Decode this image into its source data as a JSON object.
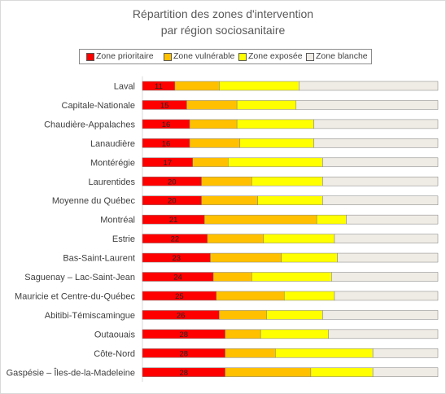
{
  "chart_data": {
    "type": "bar",
    "orientation": "horizontal",
    "stacked": "percent",
    "title_line1": "Répartition des zones d'intervention",
    "title_line2": "par région sociosanitaire",
    "legend_position": "top",
    "grid": false,
    "xlim": [
      0,
      100
    ],
    "categories": [
      "Laval",
      "Capitale-Nationale",
      "Chaudière-Appalaches",
      "Lanaudière",
      "Montérégie",
      "Laurentides",
      "Moyenne du Québec",
      "Montréal",
      "Estrie",
      "Bas-Saint-Laurent",
      "Saguenay – Lac-Saint-Jean",
      "Mauricie et Centre-du-Québec",
      "Abitibi-Témiscamingue",
      "Outaouais",
      "Côte-Nord",
      "Gaspésie – Îles-de-la-Madeleine"
    ],
    "series": [
      {
        "name": "Zone prioritaire",
        "color": "#ff0000",
        "values": [
          11,
          15,
          16,
          16,
          17,
          20,
          20,
          21,
          22,
          23,
          24,
          25,
          26,
          28,
          28,
          28
        ],
        "labels": [
          "11",
          "15",
          "16",
          "16",
          "17",
          "20",
          "20",
          "21",
          "22",
          "23",
          "24",
          "25",
          "26",
          "28",
          "28",
          "28"
        ]
      },
      {
        "name": "Zone vulnérable",
        "color": "#ffc000",
        "values": [
          15,
          17,
          16,
          17,
          12,
          17,
          19,
          38,
          19,
          24,
          13,
          23,
          16,
          12,
          17,
          29
        ]
      },
      {
        "name": "Zone exposée",
        "color": "#ffff00",
        "values": [
          27,
          20,
          26,
          25,
          32,
          24,
          22,
          10,
          24,
          19,
          27,
          17,
          19,
          23,
          33,
          21
        ]
      },
      {
        "name": "Zone blanche",
        "color": "#efebe5",
        "values": [
          47,
          48,
          42,
          42,
          39,
          39,
          39,
          31,
          35,
          34,
          36,
          35,
          39,
          37,
          22,
          22
        ]
      }
    ]
  }
}
